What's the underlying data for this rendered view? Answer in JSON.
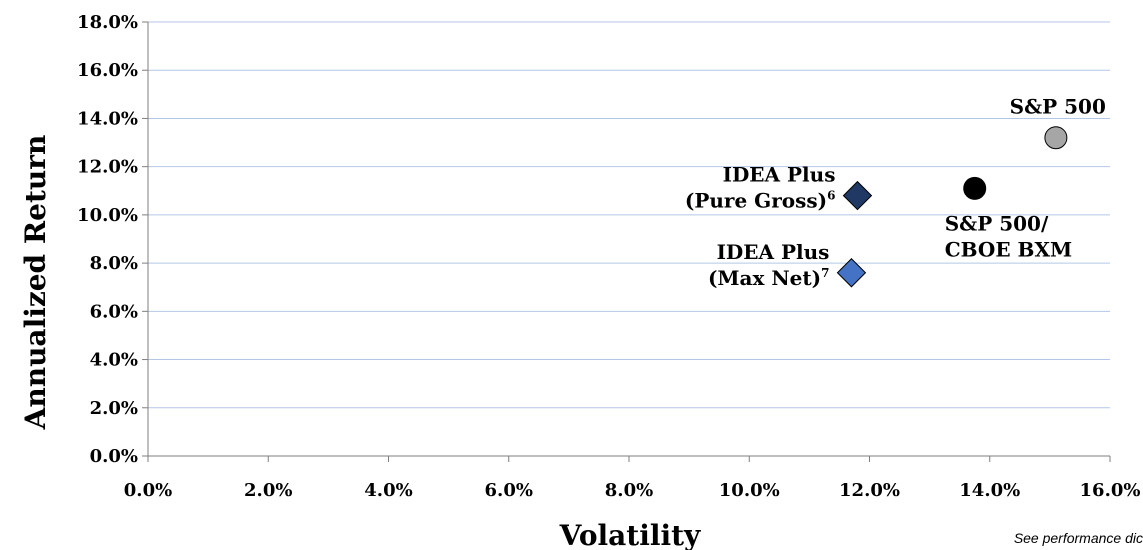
{
  "chart_data": {
    "type": "scatter",
    "xlabel": "Volatility",
    "ylabel": "Annualized Return",
    "xlim": [
      0,
      16
    ],
    "ylim": [
      0,
      18
    ],
    "x_ticks": [
      "0.0%",
      "2.0%",
      "4.0%",
      "6.0%",
      "8.0%",
      "10.0%",
      "12.0%",
      "14.0%",
      "16.0%"
    ],
    "y_ticks": [
      "0.0%",
      "2.0%",
      "4.0%",
      "6.0%",
      "8.0%",
      "10.0%",
      "12.0%",
      "14.0%",
      "16.0%",
      "18.0%"
    ],
    "grid": "horizontal",
    "points": [
      {
        "label_lines": [
          "S&P 500"
        ],
        "x": 15.1,
        "y": 13.2,
        "marker": "circle",
        "color": "#a6a6a6",
        "label_pos": "above-left"
      },
      {
        "label_lines": [
          "S&P 500/",
          "CBOE BXM"
        ],
        "x": 13.75,
        "y": 11.1,
        "marker": "circle",
        "color": "#000000",
        "label_pos": "below-right"
      },
      {
        "label_lines": [
          "IDEA Plus",
          "(Pure Gross)"
        ],
        "superscript": "6",
        "x": 11.8,
        "y": 10.8,
        "marker": "diamond",
        "color": "#1f3864",
        "label_pos": "left"
      },
      {
        "label_lines": [
          "IDEA Plus",
          "(Max Net)"
        ],
        "superscript": "7",
        "x": 11.7,
        "y": 7.6,
        "marker": "diamond",
        "color": "#4472c4",
        "label_pos": "left"
      }
    ]
  },
  "footnote": "See performance dic"
}
